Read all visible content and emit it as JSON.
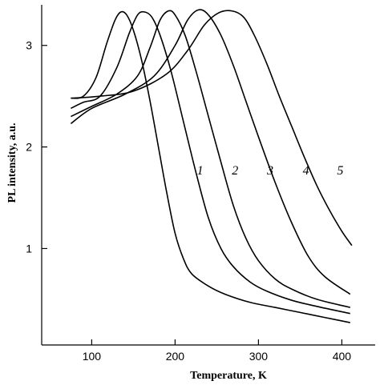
{
  "chart_data": {
    "type": "line",
    "title": "",
    "xlabel": "Temperature, K",
    "ylabel": "PL intensity, a.u.",
    "xlim": [
      40,
      440
    ],
    "ylim": [
      0.05,
      3.4
    ],
    "xticks": [
      100,
      200,
      300,
      400
    ],
    "yticks": [
      1,
      2,
      3
    ],
    "grid": false,
    "legend": "none",
    "series": [
      {
        "name": "1",
        "label_at": [
          230,
          1.73
        ],
        "x": [
          75,
          90,
          105,
          118,
          128,
          135,
          142,
          150,
          160,
          170,
          180,
          190,
          200,
          210,
          220,
          240,
          260,
          290,
          320,
          350,
          380,
          410
        ],
        "y": [
          2.48,
          2.5,
          2.68,
          3.02,
          3.25,
          3.33,
          3.3,
          3.15,
          2.85,
          2.45,
          2.0,
          1.55,
          1.15,
          0.9,
          0.75,
          0.63,
          0.55,
          0.47,
          0.42,
          0.37,
          0.32,
          0.27
        ]
      },
      {
        "name": "2",
        "label_at": [
          272,
          1.73
        ],
        "x": [
          75,
          90,
          110,
          130,
          145,
          155,
          163,
          172,
          182,
          195,
          210,
          225,
          240,
          255,
          270,
          290,
          310,
          340,
          370,
          410
        ],
        "y": [
          2.38,
          2.44,
          2.5,
          2.78,
          3.12,
          3.3,
          3.33,
          3.28,
          3.1,
          2.75,
          2.25,
          1.75,
          1.3,
          1.0,
          0.82,
          0.67,
          0.58,
          0.49,
          0.43,
          0.36
        ]
      },
      {
        "name": "3",
        "label_at": [
          314,
          1.73
        ],
        "x": [
          75,
          100,
          130,
          155,
          170,
          182,
          192,
          200,
          212,
          225,
          240,
          255,
          270,
          285,
          300,
          320,
          340,
          370,
          410
        ],
        "y": [
          2.3,
          2.4,
          2.52,
          2.7,
          2.98,
          3.25,
          3.34,
          3.3,
          3.1,
          2.75,
          2.3,
          1.85,
          1.42,
          1.1,
          0.88,
          0.7,
          0.6,
          0.5,
          0.42
        ]
      },
      {
        "name": "4",
        "label_at": [
          357,
          1.73
        ],
        "x": [
          75,
          100,
          140,
          175,
          200,
          215,
          228,
          240,
          255,
          270,
          285,
          300,
          320,
          340,
          360,
          380,
          410
        ],
        "y": [
          2.23,
          2.38,
          2.52,
          2.7,
          3.0,
          3.25,
          3.35,
          3.3,
          3.1,
          2.8,
          2.45,
          2.1,
          1.65,
          1.25,
          0.92,
          0.72,
          0.55
        ]
      },
      {
        "name": "5",
        "label_at": [
          398,
          1.73
        ],
        "x": [
          75,
          110,
          150,
          190,
          215,
          235,
          252,
          268,
          282,
          295,
          310,
          325,
          340,
          355,
          370,
          385,
          400,
          412
        ],
        "y": [
          2.48,
          2.5,
          2.55,
          2.72,
          2.95,
          3.2,
          3.32,
          3.34,
          3.28,
          3.1,
          2.82,
          2.5,
          2.2,
          1.9,
          1.62,
          1.38,
          1.17,
          1.03
        ]
      }
    ]
  }
}
